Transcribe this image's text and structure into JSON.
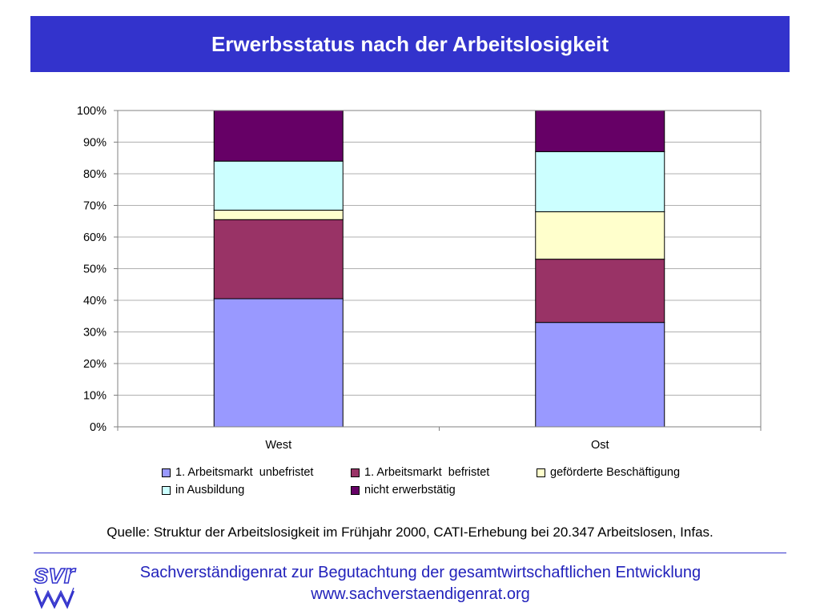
{
  "header": {
    "title": "Erwerbsstatus nach der Arbeitslosigkeit"
  },
  "chart_data": {
    "type": "bar",
    "stacked": true,
    "categories": [
      "West",
      "Ost"
    ],
    "yticks": [
      "0%",
      "10%",
      "20%",
      "30%",
      "40%",
      "50%",
      "60%",
      "70%",
      "80%",
      "90%",
      "100%"
    ],
    "ylim": [
      0,
      100
    ],
    "grid": true,
    "legend_position": "bottom",
    "series": [
      {
        "name": "1. Arbeitsmarkt  unbefristet",
        "color": "#9999ff",
        "values": [
          40.5,
          33
        ]
      },
      {
        "name": "1. Arbeitsmarkt  befristet",
        "color": "#993366",
        "values": [
          25,
          20
        ]
      },
      {
        "name": "geförderte Beschäftigung",
        "color": "#ffffcc",
        "values": [
          3,
          15
        ]
      },
      {
        "name": "in Ausbildung",
        "color": "#ccffff",
        "values": [
          15.5,
          19
        ]
      },
      {
        "name": "nicht erwerbstätig",
        "color": "#660066",
        "values": [
          16,
          13
        ]
      }
    ]
  },
  "source": {
    "text": "Quelle: Struktur der Arbeitslosigkeit im Frühjahr 2000, CATI-Erhebung bei 20.347 Arbeitslosen, Infas."
  },
  "footer": {
    "org": "Sachverständigenrat zur Begutachtung der gesamtwirtschaftlichen Entwicklung",
    "url": "www.sachverstaendigenrat.org",
    "logo_text": "svr"
  },
  "colors": {
    "banner": "#3333cc",
    "footer_text": "#2222bb"
  }
}
